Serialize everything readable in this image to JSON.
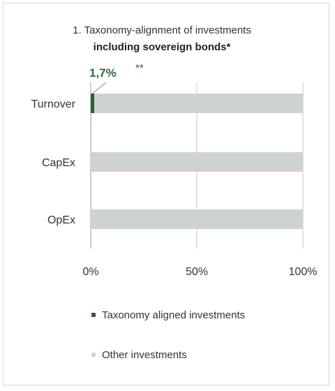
{
  "chart_data": {
    "type": "bar",
    "orientation": "horizontal",
    "stacked": true,
    "title_line1": "1. Taxonomy-alignment of investments",
    "title_line2": "including sovereign bonds*",
    "categories": [
      "Turnover",
      "CapEx",
      "OpEx"
    ],
    "series": [
      {
        "name": "Taxonomy aligned investments",
        "values": [
          1.7,
          0,
          0
        ],
        "color": "#2f5e3a"
      },
      {
        "name": "Other investments",
        "values": [
          98.3,
          100,
          100
        ],
        "color": "#cfd3cf"
      }
    ],
    "xlim": [
      0,
      100
    ],
    "xticks": [
      "0%",
      "50%",
      "100%"
    ],
    "xtick_values": [
      0,
      50,
      100
    ],
    "annotation": {
      "value_label": "1,7%",
      "note": "**",
      "color": "#2f6b3c"
    },
    "legend_position": "bottom",
    "grid": true
  }
}
